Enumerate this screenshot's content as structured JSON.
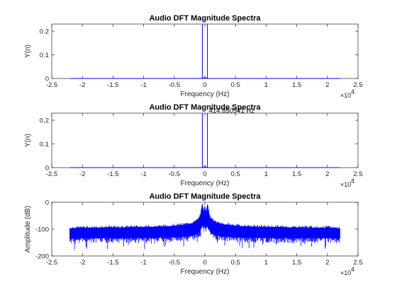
{
  "chart_data": [
    {
      "type": "line",
      "title": "Audio DFT Magnitude Spectra",
      "xlabel": "Frequency (Hz)",
      "ylabel": "Y(n)",
      "x_exponent_base": "×10",
      "x_exponent_power": "4",
      "xlim": [
        -25000,
        25000
      ],
      "ylim": [
        0,
        0.23
      ],
      "xticks": [
        "-2.5",
        "-2",
        "-1.5",
        "-1",
        "-0.5",
        "0",
        "0.5",
        "1",
        "1.5",
        "2",
        "2.5"
      ],
      "yticks": [
        "0",
        "0.1",
        "0.2"
      ],
      "line_color": "#0000ff",
      "series": [
        {
          "x": [
            -22050,
            -1000,
            -415,
            -415,
            -415,
            -200,
            0,
            200,
            415,
            415,
            415,
            1000,
            22050
          ],
          "y": [
            0,
            0,
            0,
            0.23,
            0,
            0.002,
            0.005,
            0.002,
            0,
            0.23,
            0,
            0,
            0
          ]
        }
      ]
    },
    {
      "type": "line",
      "title": "Audio DFT Magnitude Spectra",
      "xlabel": "Frequency (Hz)",
      "ylabel": "Y(n)",
      "x_exponent_base": "×10",
      "x_exponent_power": "4",
      "xlim": [
        -25000,
        25000
      ],
      "ylim": [
        0,
        0.23
      ],
      "xticks": [
        "-2.5",
        "-2",
        "-1.5",
        "-1",
        "-0.5",
        "0",
        "0.5",
        "1",
        "1.5",
        "2",
        "2.5"
      ],
      "yticks": [
        "0",
        "0.1",
        "0.2"
      ],
      "annotation": {
        "text": "414.850941 Hz",
        "x": 415,
        "y": 0.23
      },
      "line_color": "#0000ff",
      "series": [
        {
          "x": [
            -22050,
            -1000,
            -415,
            -415,
            -415,
            -200,
            0,
            200,
            415,
            415,
            415,
            1000,
            22050
          ],
          "y": [
            0,
            0,
            0,
            0.23,
            0,
            0.002,
            0.005,
            0.002,
            0,
            0.23,
            0,
            0,
            0
          ]
        }
      ]
    },
    {
      "type": "line",
      "title": "Audio DFT Magnitude Spectra",
      "xlabel": "Frequency (Hz)",
      "ylabel": "Amplitude (dB)",
      "x_exponent_base": "×10",
      "x_exponent_power": "4",
      "xlim": [
        -25000,
        25000
      ],
      "ylim": [
        -200,
        0
      ],
      "xticks": [
        "-2.5",
        "-2",
        "-1.5",
        "-1",
        "-0.5",
        "0",
        "0.5",
        "1",
        "1.5",
        "2",
        "2.5"
      ],
      "yticks": [
        "-200",
        "-100",
        "0"
      ],
      "line_color": "#0000ff",
      "series": [
        {
          "x": [
            -22050,
            -20000,
            -18000,
            -16000,
            -14000,
            -12000,
            -10000,
            -8000,
            -6000,
            -4000,
            -3000,
            -2000,
            -1500,
            -1000,
            -700,
            -415,
            -200,
            0,
            200,
            415,
            700,
            1000,
            1500,
            2000,
            3000,
            4000,
            6000,
            8000,
            10000,
            12000,
            14000,
            16000,
            18000,
            20000,
            22050
          ],
          "y_upper": [
            -98,
            -95,
            -96,
            -94,
            -95,
            -93,
            -93,
            -92,
            -90,
            -86,
            -83,
            -78,
            -72,
            -62,
            -45,
            -8,
            -40,
            -15,
            -40,
            -8,
            -45,
            -62,
            -72,
            -78,
            -83,
            -86,
            -90,
            -92,
            -93,
            -93,
            -95,
            -94,
            -96,
            -95,
            -98
          ],
          "y_lower": [
            -135,
            -132,
            -133,
            -132,
            -133,
            -132,
            -132,
            -131,
            -130,
            -128,
            -126,
            -124,
            -120,
            -112,
            -100,
            -85,
            -95,
            -80,
            -95,
            -85,
            -100,
            -112,
            -120,
            -124,
            -126,
            -128,
            -130,
            -131,
            -132,
            -132,
            -133,
            -132,
            -133,
            -132,
            -135
          ]
        }
      ]
    }
  ]
}
